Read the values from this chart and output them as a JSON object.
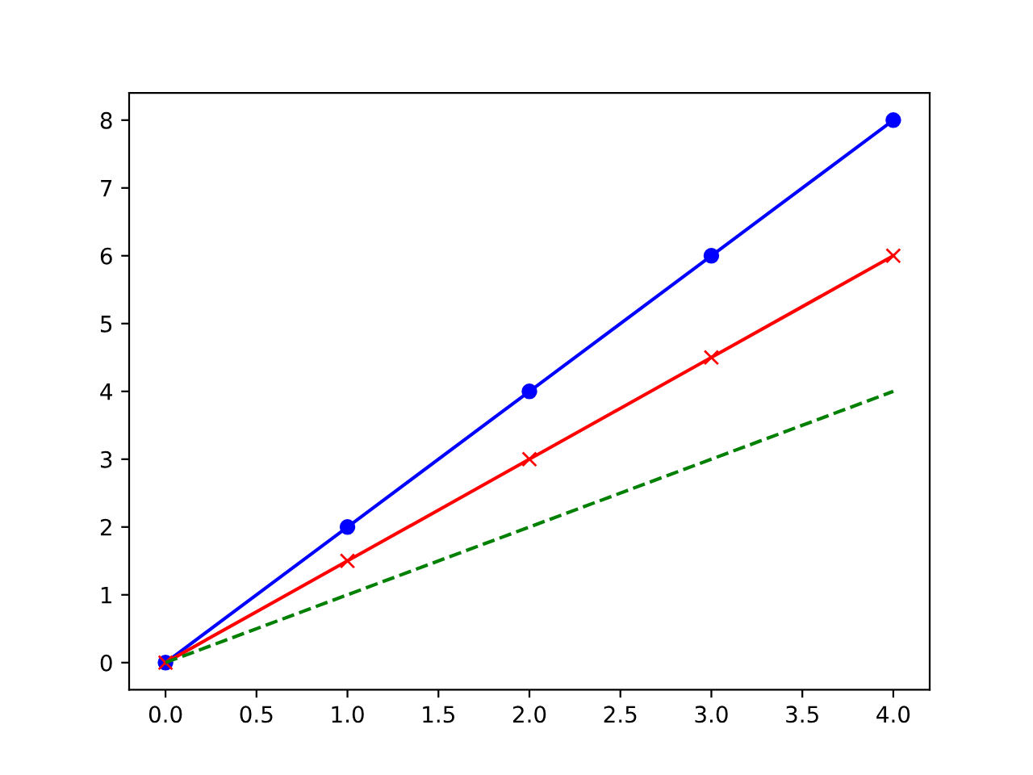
{
  "chart_data": {
    "type": "line",
    "x": [
      0,
      1,
      2,
      3,
      4
    ],
    "series": [
      {
        "color": "#0000ff",
        "values": [
          0,
          2,
          4,
          6,
          8
        ],
        "marker": "circle",
        "line_style": "solid"
      },
      {
        "color": "#ff0000",
        "values": [
          0,
          1.5,
          3,
          4.5,
          6
        ],
        "marker": "cross",
        "line_style": "solid"
      },
      {
        "color": "#008000",
        "values": [
          0,
          1,
          2,
          3,
          4
        ],
        "marker": "none",
        "line_style": "dashed"
      }
    ],
    "xlim": [
      -0.2,
      4.2
    ],
    "ylim": [
      -0.4,
      8.4
    ],
    "xticks": [
      {
        "value": 0,
        "label": "0.0"
      },
      {
        "value": 0.5,
        "label": "0.5"
      },
      {
        "value": 1,
        "label": "1.0"
      },
      {
        "value": 1.5,
        "label": "1.5"
      },
      {
        "value": 2,
        "label": "2.0"
      },
      {
        "value": 2.5,
        "label": "2.5"
      },
      {
        "value": 3,
        "label": "3.0"
      },
      {
        "value": 3.5,
        "label": "3.5"
      },
      {
        "value": 4,
        "label": "4.0"
      }
    ],
    "yticks": [
      0,
      1,
      2,
      3,
      4,
      5,
      6,
      7,
      8
    ],
    "grid": false,
    "legend": false
  }
}
